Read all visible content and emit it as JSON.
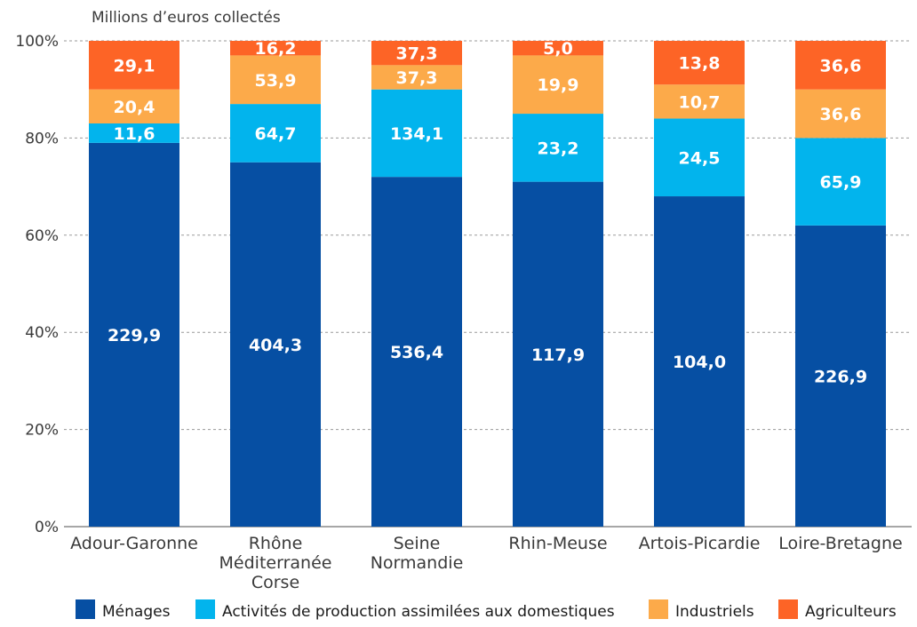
{
  "chart_data": {
    "type": "bar",
    "stacked": "percent",
    "title": "",
    "ylabel": "Millions d’euros collectés",
    "ylim": [
      0,
      100
    ],
    "yticks": [
      "0%",
      "20%",
      "40%",
      "60%",
      "80%",
      "100%"
    ],
    "grid": true,
    "legend_position": "bottom",
    "categories": [
      [
        "Adour-Garonne"
      ],
      [
        "Rhône",
        "Méditerranée",
        "Corse"
      ],
      [
        "Seine",
        "Normandie"
      ],
      [
        "Rhin-Meuse"
      ],
      [
        "Artois-Picardie"
      ],
      [
        "Loire-Bretagne"
      ]
    ],
    "series": [
      {
        "name": "Ménages",
        "color": "#064fa3",
        "values": [
          229.9,
          404.3,
          536.4,
          117.9,
          104.0,
          226.9
        ],
        "labels": [
          "229,9",
          "404,3",
          "536,4",
          "117,9",
          "104,0",
          "226,9"
        ],
        "percent_top": [
          79,
          75,
          72,
          71,
          68,
          62
        ]
      },
      {
        "name": "Activités de production assimilées aux domestiques",
        "color": "#02b4ed",
        "values": [
          11.6,
          64.7,
          134.1,
          23.2,
          24.5,
          65.9
        ],
        "labels": [
          "11,6",
          "64,7",
          "134,1",
          "23,2",
          "24,5",
          "65,9"
        ],
        "percent_top": [
          83,
          87,
          90,
          85,
          84,
          80
        ]
      },
      {
        "name": "Industriels",
        "color": "#fcaa4a",
        "values": [
          20.4,
          53.9,
          37.3,
          19.9,
          10.7,
          36.6
        ],
        "labels": [
          "20,4",
          "53,9",
          "37,3",
          "19,9",
          "10,7",
          "36,6"
        ],
        "percent_top": [
          90,
          97,
          95,
          97,
          91,
          90
        ]
      },
      {
        "name": "Agriculteurs",
        "color": "#fd6426",
        "values": [
          29.1,
          16.2,
          37.3,
          5.0,
          13.8,
          36.6
        ],
        "labels": [
          "29,1",
          "16,2",
          "37,3",
          "5,0",
          "13,8",
          "36,6"
        ],
        "percent_top": [
          100,
          100,
          100,
          100,
          100,
          100
        ]
      }
    ]
  }
}
